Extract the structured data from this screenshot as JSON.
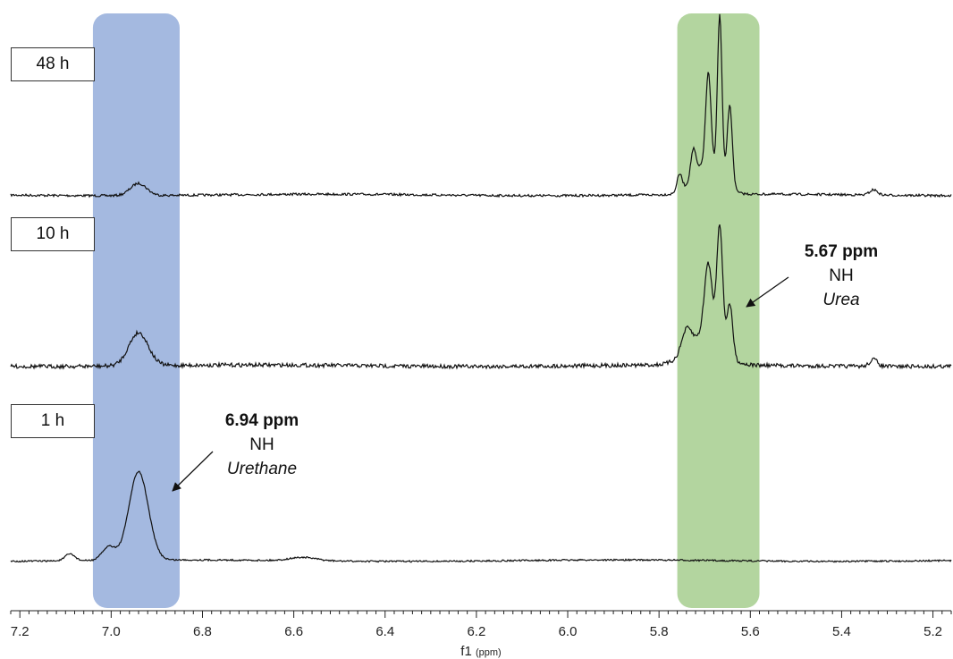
{
  "chart_data": {
    "type": "line",
    "xlabel": "f1",
    "xunit": "ppm",
    "xlim": [
      7.22,
      5.16
    ],
    "x_reversed": true,
    "ticks": [
      "7.2",
      "7.0",
      "6.8",
      "6.6",
      "6.4",
      "6.2",
      "6.0",
      "5.8",
      "5.6",
      "5.4",
      "5.2"
    ],
    "highlights": [
      {
        "name": "urethane-band",
        "from": 7.04,
        "to": 6.85,
        "color": "#A4B9E0"
      },
      {
        "name": "urea-band",
        "from": 5.76,
        "to": 5.58,
        "color": "#B3D59F"
      }
    ],
    "series": [
      {
        "name": "48 h",
        "peaks": [
          {
            "ppm": 6.94,
            "height": 0.07,
            "width": 0.025
          },
          {
            "ppm": 5.755,
            "height": 0.1,
            "width": 0.008
          },
          {
            "ppm": 5.725,
            "height": 0.16,
            "width": 0.008
          },
          {
            "ppm": 5.692,
            "height": 0.52,
            "width": 0.008
          },
          {
            "ppm": 5.667,
            "height": 0.92,
            "width": 0.007
          },
          {
            "ppm": 5.645,
            "height": 0.47,
            "width": 0.008
          },
          {
            "ppm": 5.695,
            "height": 0.18,
            "width": 0.04
          },
          {
            "ppm": 5.33,
            "height": 0.03,
            "width": 0.012
          }
        ]
      },
      {
        "name": "10 h",
        "peaks": [
          {
            "ppm": 6.94,
            "height": 0.19,
            "width": 0.03
          },
          {
            "ppm": 5.74,
            "height": 0.12,
            "width": 0.015
          },
          {
            "ppm": 5.692,
            "height": 0.42,
            "width": 0.012
          },
          {
            "ppm": 5.667,
            "height": 0.7,
            "width": 0.009
          },
          {
            "ppm": 5.645,
            "height": 0.3,
            "width": 0.009
          },
          {
            "ppm": 5.7,
            "height": 0.17,
            "width": 0.05
          },
          {
            "ppm": 5.33,
            "height": 0.04,
            "width": 0.012
          }
        ]
      },
      {
        "name": "1 h",
        "peaks": [
          {
            "ppm": 7.09,
            "height": 0.04,
            "width": 0.015
          },
          {
            "ppm": 7.005,
            "height": 0.08,
            "width": 0.02
          },
          {
            "ppm": 6.94,
            "height": 0.52,
            "width": 0.03
          },
          {
            "ppm": 6.58,
            "height": 0.02,
            "width": 0.04
          }
        ]
      }
    ],
    "annotations": [
      {
        "value": "6.94 ppm",
        "label": "NH",
        "name": "Urethane",
        "target_ppm": 6.94
      },
      {
        "value": "5.67 ppm",
        "label": "NH",
        "name": "Urea",
        "target_ppm": 5.667
      }
    ]
  },
  "labels": {
    "t48": "48 h",
    "t10": "10 h",
    "t1": "1 h",
    "urethane_value": "6.94 ppm",
    "urethane_group": "NH",
    "urethane_name": "Urethane",
    "urea_value": "5.67 ppm",
    "urea_group": "NH",
    "urea_name": "Urea",
    "axis_main": "f1",
    "axis_unit": "ppm"
  }
}
